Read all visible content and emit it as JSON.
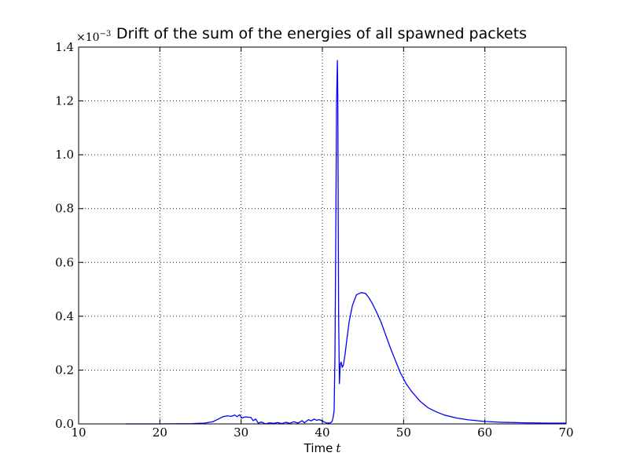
{
  "chart_data": {
    "type": "line",
    "title": "Drift of the sum of the energies of all spawned packets",
    "xlabel": "Time",
    "xlabel_var": "t",
    "ylabel": "",
    "y_scale_label": "×10",
    "y_scale_exponent": "−3",
    "xlim": [
      10,
      70
    ],
    "ylim": [
      0,
      1.4
    ],
    "x_ticks": [
      10,
      20,
      30,
      40,
      50,
      60,
      70
    ],
    "x_tick_labels": [
      "10",
      "20",
      "30",
      "40",
      "50",
      "60",
      "70"
    ],
    "y_ticks": [
      0,
      0.2,
      0.4,
      0.6,
      0.8,
      1.0,
      1.2,
      1.4
    ],
    "y_tick_labels": [
      "0.0",
      "0.2",
      "0.4",
      "0.6",
      "0.8",
      "1.0",
      "1.2",
      "1.4"
    ],
    "grid": true,
    "line_color": "#0000ff",
    "series": [
      {
        "x": [
          15.8,
          20,
          24,
          25.5,
          26.5,
          27.2,
          27.8,
          28.3,
          28.8,
          29.2,
          29.5,
          29.8,
          30.1,
          30.5,
          31.2,
          31.5,
          31.8,
          32.1,
          32.5,
          33,
          33.5,
          34,
          34.5,
          35,
          35.5,
          36,
          36.5,
          37,
          37.5,
          37.8,
          38,
          38.3,
          38.6,
          39,
          39.3,
          39.6,
          40,
          40.3,
          40.6,
          41,
          41.2,
          41.35,
          41.45,
          41.55,
          41.65,
          41.75,
          41.85,
          41.9,
          42.0,
          42.1,
          42.2,
          42.3,
          42.45,
          42.6,
          42.8,
          43,
          43.3,
          43.7,
          44.2,
          44.8,
          45.3,
          45.7,
          46.1,
          46.6,
          47.2,
          47.8,
          48.4,
          49,
          49.6,
          50.3,
          51,
          52,
          53,
          54,
          55,
          56.5,
          58,
          60,
          62,
          65,
          68,
          70
        ],
        "y": [
          0.0,
          0.0,
          0.001,
          0.003,
          0.008,
          0.018,
          0.027,
          0.03,
          0.028,
          0.033,
          0.027,
          0.034,
          0.022,
          0.026,
          0.024,
          0.012,
          0.018,
          0.003,
          0.007,
          0.0,
          0.004,
          0.002,
          0.005,
          0.001,
          0.006,
          0.002,
          0.008,
          0.003,
          0.012,
          0.004,
          0.009,
          0.016,
          0.011,
          0.018,
          0.013,
          0.016,
          0.011,
          0.006,
          0.003,
          0.004,
          0.009,
          0.028,
          0.05,
          0.25,
          0.7,
          1.2,
          1.35,
          1.22,
          0.4,
          0.15,
          0.22,
          0.23,
          0.21,
          0.22,
          0.26,
          0.31,
          0.38,
          0.44,
          0.48,
          0.488,
          0.485,
          0.47,
          0.45,
          0.42,
          0.38,
          0.33,
          0.28,
          0.235,
          0.19,
          0.15,
          0.12,
          0.085,
          0.06,
          0.045,
          0.033,
          0.022,
          0.015,
          0.009,
          0.006,
          0.004,
          0.003,
          0.003
        ]
      }
    ]
  }
}
